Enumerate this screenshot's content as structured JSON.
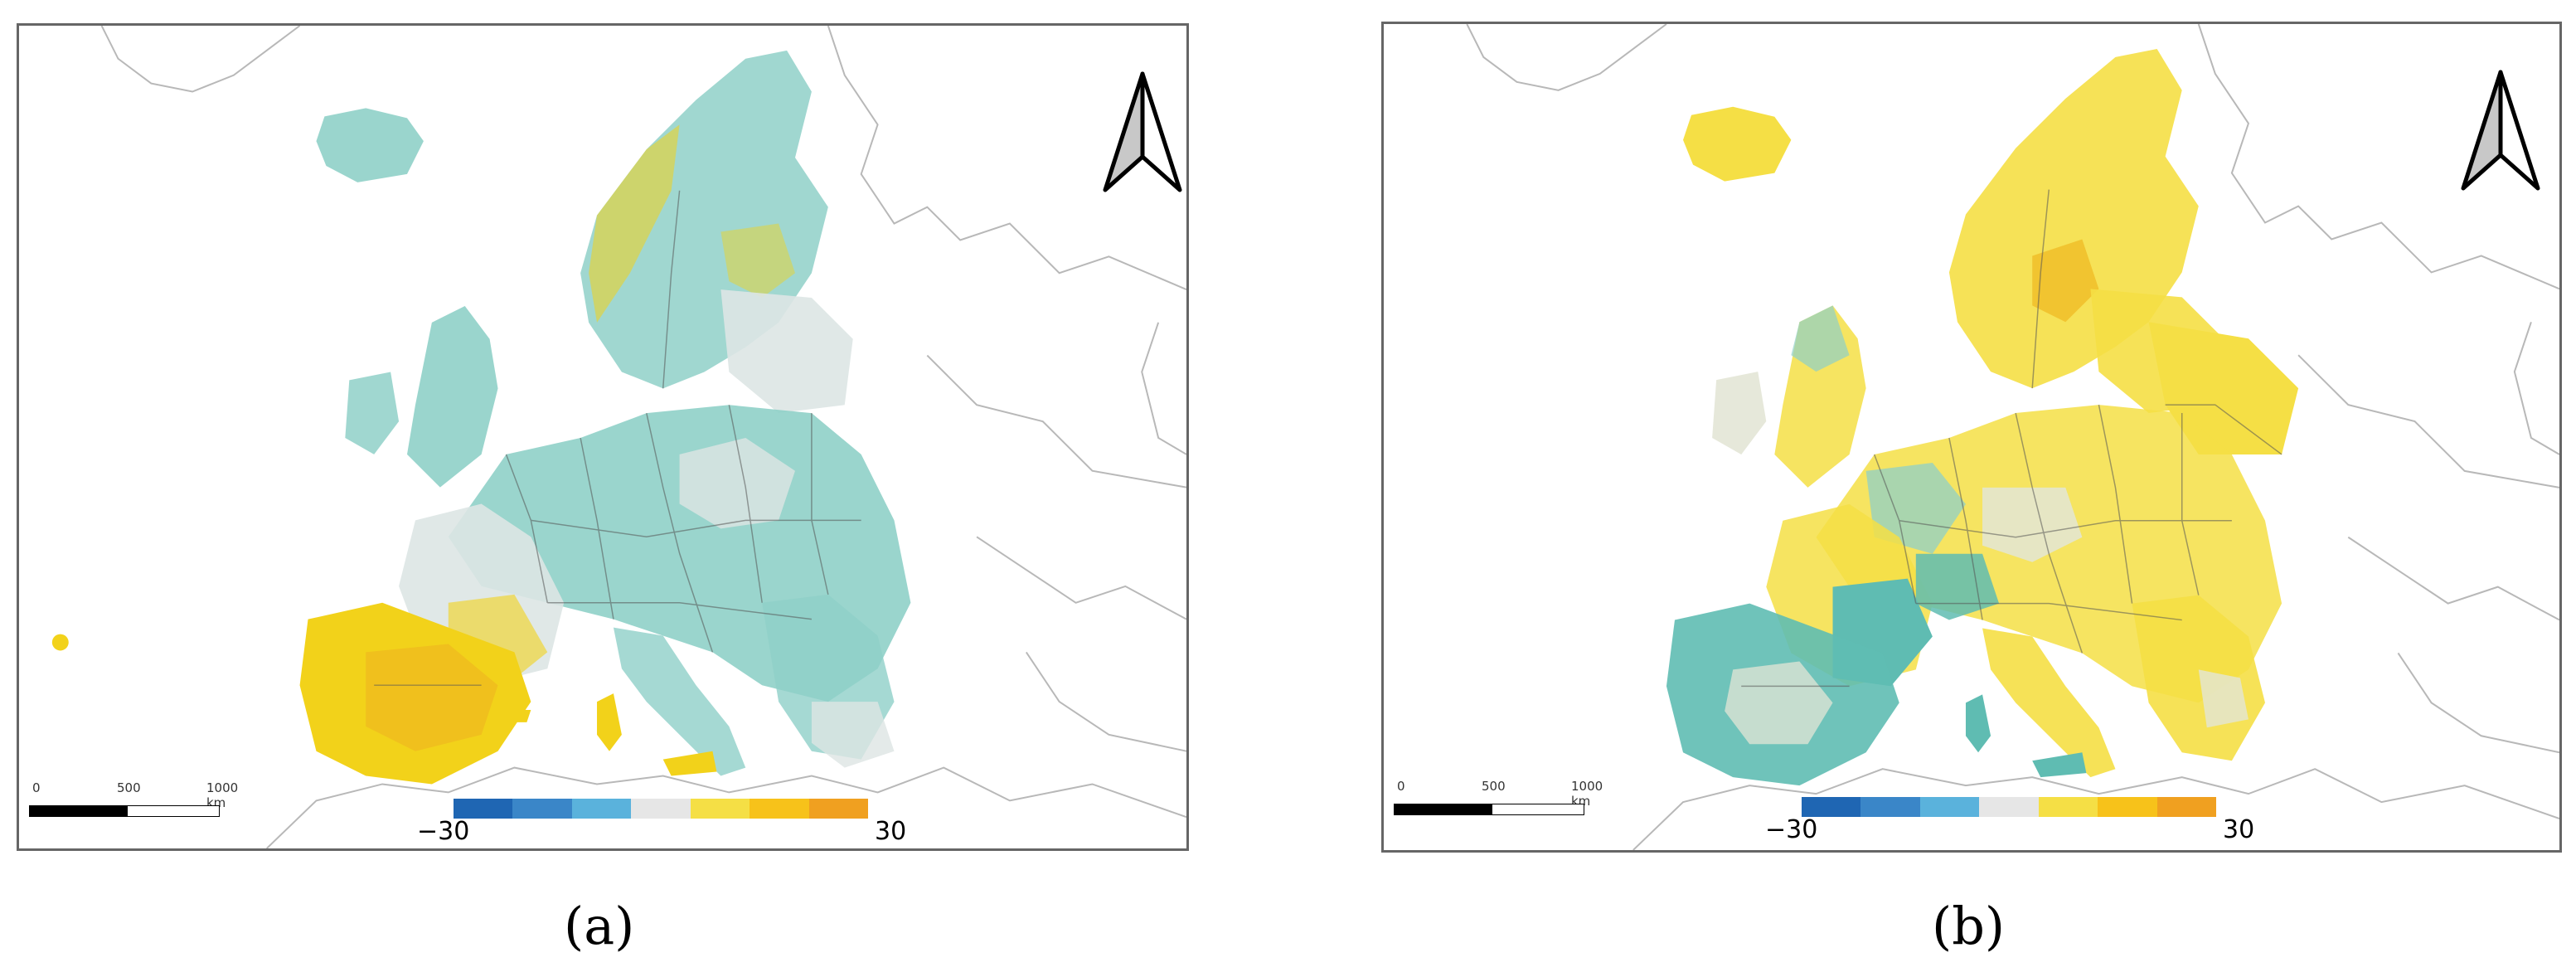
{
  "panels": [
    {
      "id": "a",
      "caption": "(a)",
      "theme": "Western Europe predominantly teal (negative change); Iberian Peninsula and southern France strongly yellow/orange (positive change)",
      "colors": {
        "land_dominant": "#8fd0c8",
        "land_accent": "#f2d21a",
        "land_neutral": "#dde5e4"
      }
    },
    {
      "id": "b",
      "caption": "(b)",
      "theme": "Most of Europe yellow (positive change); Iberian Peninsula, southern France and Italy teal (negative change)",
      "colors": {
        "land_dominant": "#f5df45",
        "land_accent": "#5fbcb2",
        "land_neutral": "#e3e6d6"
      }
    }
  ],
  "scalebar": {
    "ticks": [
      "0",
      "500",
      "1000 km"
    ]
  },
  "legend": {
    "min_label": "−30",
    "max_label": "30",
    "range": [
      -30,
      30
    ],
    "colors": [
      "#1f66b3",
      "#3a86c8",
      "#5ab2dc",
      "#e6e6e6",
      "#f5df45",
      "#f7c21a",
      "#f0a020"
    ]
  },
  "north_arrow": {
    "icon": "north-arrow-icon"
  }
}
